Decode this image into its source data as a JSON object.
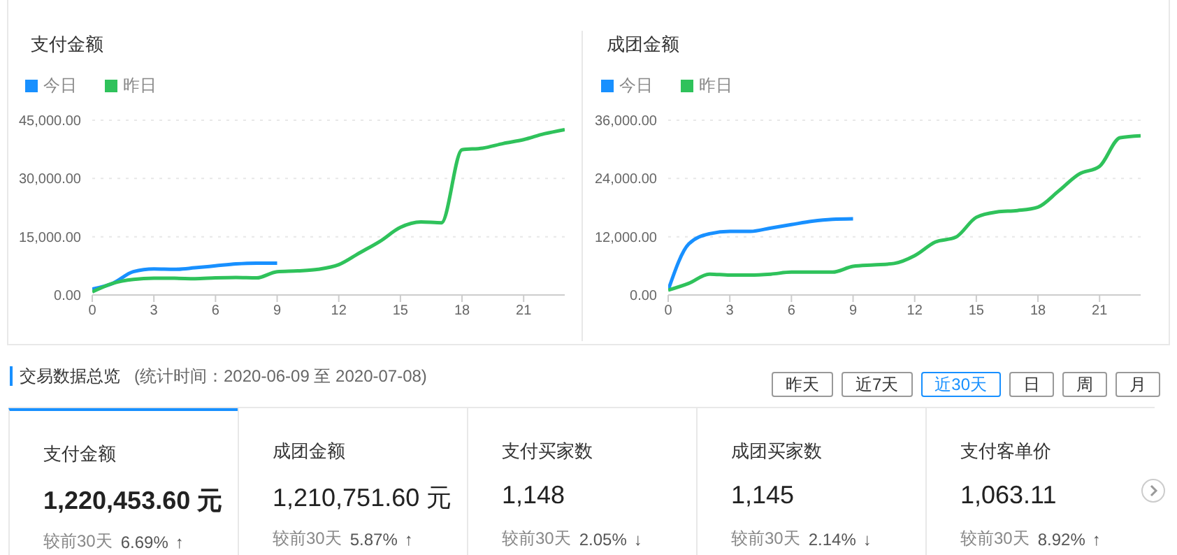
{
  "chart_data": [
    {
      "type": "line",
      "title": "支付金额",
      "x": [
        0,
        1,
        2,
        3,
        4,
        5,
        6,
        7,
        8,
        9,
        10,
        11,
        12,
        13,
        14,
        15,
        16,
        17,
        18,
        19,
        20,
        21,
        22,
        23
      ],
      "xlim": [
        0,
        23
      ],
      "xticks": [
        0,
        3,
        6,
        9,
        12,
        15,
        18,
        21
      ],
      "ylim": [
        0,
        45000
      ],
      "yticks": [
        {
          "value": 0,
          "label": "0.00"
        },
        {
          "value": 15000,
          "label": "15,000.00"
        },
        {
          "value": 30000,
          "label": "30,000.00"
        },
        {
          "value": 45000,
          "label": "45,000.00"
        }
      ],
      "grid": "y",
      "legend": "top left",
      "marker": "none",
      "line_style": "solid",
      "series": [
        {
          "name": "今日",
          "color": "#1890ff",
          "values": [
            1500,
            3000,
            6000,
            6700,
            6600,
            7000,
            7500,
            8000,
            8200,
            8200,
            null,
            null,
            null,
            null,
            null,
            null,
            null,
            null,
            null,
            null,
            null,
            null,
            null,
            null
          ]
        },
        {
          "name": "昨日",
          "color": "#2fc25b",
          "values": [
            800,
            3000,
            4000,
            4300,
            4300,
            4200,
            4400,
            4500,
            4400,
            6000,
            6200,
            6600,
            7800,
            10800,
            13800,
            17400,
            18800,
            18600,
            37400,
            37800,
            39000,
            40000,
            41500,
            42600
          ]
        }
      ]
    },
    {
      "type": "line",
      "title": "成团金额",
      "x": [
        0,
        1,
        2,
        3,
        4,
        5,
        6,
        7,
        8,
        9,
        10,
        11,
        12,
        13,
        14,
        15,
        16,
        17,
        18,
        19,
        20,
        21,
        22,
        23
      ],
      "xlim": [
        0,
        23
      ],
      "xticks": [
        0,
        3,
        6,
        9,
        12,
        15,
        18,
        21
      ],
      "ylim": [
        0,
        36000
      ],
      "yticks": [
        {
          "value": 0,
          "label": "0.00"
        },
        {
          "value": 12000,
          "label": "12,000.00"
        },
        {
          "value": 24000,
          "label": "24,000.00"
        },
        {
          "value": 36000,
          "label": "36,000.00"
        }
      ],
      "grid": "y",
      "legend": "top left",
      "marker": "none",
      "line_style": "solid",
      "series": [
        {
          "name": "今日",
          "color": "#1890ff",
          "values": [
            1000,
            10500,
            12600,
            13100,
            13100,
            13800,
            14500,
            15200,
            15600,
            15700,
            null,
            null,
            null,
            null,
            null,
            null,
            null,
            null,
            null,
            null,
            null,
            null,
            null,
            null
          ]
        },
        {
          "name": "昨日",
          "color": "#2fc25b",
          "values": [
            1000,
            2400,
            4300,
            4100,
            4100,
            4300,
            4700,
            4700,
            4700,
            5900,
            6200,
            6500,
            8100,
            10900,
            11900,
            16000,
            17100,
            17400,
            18100,
            21400,
            24900,
            26500,
            32400,
            32800
          ]
        }
      ]
    },
    {
      "type": "other",
      "title": "交易数据总览",
      "subtitle": "(统计时间：2020-06-09 至 2020-07-08)",
      "categories": [
        "支付金额",
        "成团金额",
        "支付买家数",
        "成团买家数",
        "支付客单价"
      ],
      "annotations": [
        "昨天",
        "近7天",
        "近30天",
        "日",
        "周",
        "月",
        "1,220,453.60 元",
        "1,210,751.60 元",
        "1,148",
        "1,145",
        "1,063.11",
        "较前30天",
        "较前30天",
        "较前30天",
        "较前30天",
        "较前30天",
        "6.69%",
        "5.87%",
        "2.05%",
        "2.14%",
        "8.92%",
        "↑",
        "↑",
        "↓",
        "↓",
        "↑"
      ]
    }
  ]
}
